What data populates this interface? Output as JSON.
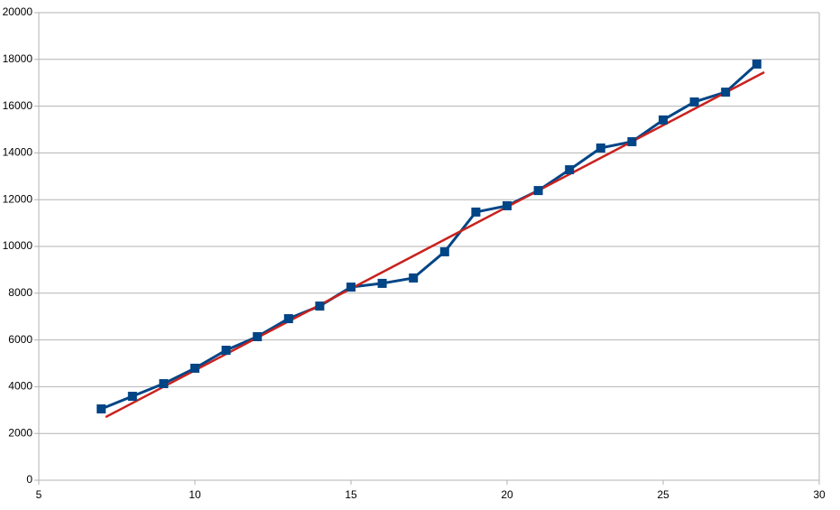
{
  "chart_data": {
    "type": "line",
    "x": [
      7,
      8,
      9,
      10,
      11,
      12,
      13,
      14,
      15,
      16,
      17,
      18,
      19,
      20,
      21,
      22,
      23,
      24,
      25,
      26,
      27,
      28
    ],
    "series": [
      {
        "color": "#004586",
        "values": [
          3050,
          3590,
          4130,
          4790,
          5560,
          6140,
          6910,
          7450,
          8260,
          8420,
          8650,
          9770,
          11470,
          11740,
          12390,
          13280,
          14210,
          14480,
          15410,
          16180,
          16600,
          17800
        ]
      }
    ],
    "trendline": {
      "x": [
        7.14,
        28.24
      ],
      "values": [
        2700,
        17450
      ],
      "color": "#c9211e"
    },
    "xlim": [
      5,
      30
    ],
    "xticks": [
      5,
      10,
      15,
      20,
      25,
      30
    ],
    "ylim": [
      0,
      20000
    ],
    "yticks": [
      0,
      2000,
      4000,
      6000,
      8000,
      10000,
      12000,
      14000,
      16000,
      18000,
      20000
    ],
    "grid": true
  }
}
